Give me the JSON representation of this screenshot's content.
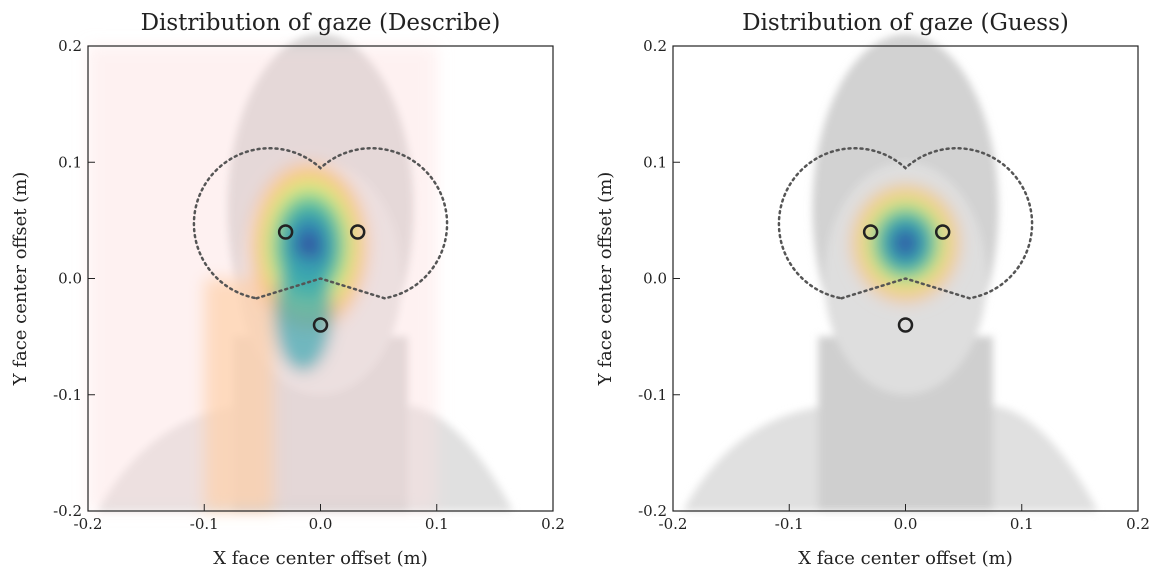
{
  "chart_data": [
    {
      "type": "scatter",
      "title": "Distribution of gaze (Describe)",
      "x_label": "X face center offset (m)",
      "y_label": "Y face center offset (m)",
      "x": [
        -0.03,
        0.032,
        0.0
      ],
      "y": [
        0.04,
        0.04,
        -0.04
      ],
      "color": "#222222",
      "xlim": [
        -0.2,
        0.2
      ],
      "ylim": [
        -0.2,
        0.2
      ],
      "xticks": [
        -0.2,
        -0.1,
        {
          "value": 0,
          "label": "0.0"
        },
        0.1,
        0.2
      ],
      "yticks": [
        -0.2,
        -0.1,
        {
          "value": 0,
          "label": "0.0"
        },
        0.1,
        0.2
      ]
    },
    {
      "type": "scatter",
      "title": "Distribution of gaze (Guess)",
      "x_label": "X face center offset (m)",
      "y_label": "Y face center offset (m)",
      "x": [
        -0.03,
        0.032,
        0.0
      ],
      "y": [
        0.04,
        0.04,
        -0.04
      ],
      "color": "#222222",
      "xlim": [
        -0.2,
        0.2
      ],
      "ylim": [
        -0.2,
        0.2
      ],
      "xticks": [
        -0.2,
        -0.1,
        {
          "value": 0,
          "label": "0.0"
        },
        0.1,
        0.2
      ],
      "yticks": [
        -0.2,
        -0.1,
        {
          "value": 0,
          "label": "0.0"
        },
        0.1,
        0.2
      ]
    }
  ]
}
